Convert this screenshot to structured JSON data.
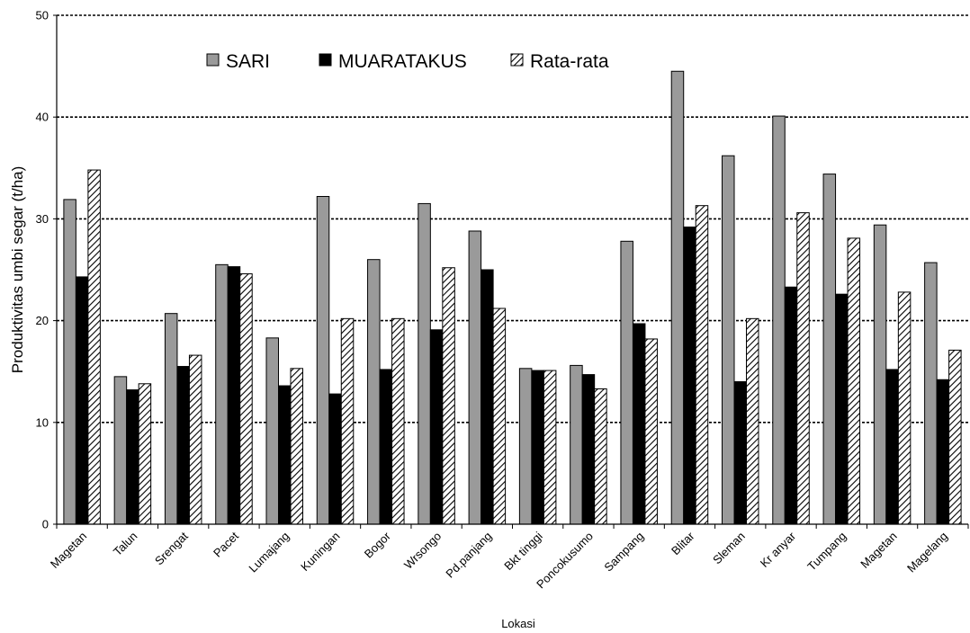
{
  "chart_data": {
    "type": "bar",
    "title": "",
    "xlabel": "Lokasi",
    "ylabel": "Produktivitas umbi segar (t/ha)",
    "ylim": [
      0,
      50
    ],
    "yticks": [
      "0",
      "10",
      "20",
      "30",
      "40",
      "50"
    ],
    "grid": "horizontal dotted",
    "legend_position": "top",
    "categories": [
      "Magetan",
      "Talun",
      "Srengat",
      "Pacet",
      "Lumajang",
      "Kuningan",
      "Bogor",
      "Wrsongo",
      "Pd.panjang",
      "Bkt tinggi",
      "Poncokusumo",
      "Sampang",
      "Blitar",
      "Sleman",
      "Kr anyar",
      "Tumpang",
      "Magetan",
      "Magelang"
    ],
    "series": [
      {
        "name": "SARI",
        "style": "gray",
        "values": [
          31.9,
          14.5,
          20.7,
          25.5,
          18.3,
          32.2,
          26.0,
          31.5,
          28.8,
          15.3,
          15.6,
          27.8,
          44.5,
          36.2,
          40.1,
          34.4,
          29.4,
          25.7
        ]
      },
      {
        "name": "MUARATAKUS",
        "style": "black",
        "values": [
          24.3,
          13.2,
          15.5,
          25.3,
          13.6,
          12.8,
          15.2,
          19.1,
          25.0,
          15.1,
          14.7,
          19.7,
          29.2,
          14.0,
          23.3,
          22.6,
          15.2,
          14.2
        ]
      },
      {
        "name": "Rata-rata",
        "style": "hatched",
        "values": [
          34.8,
          13.8,
          16.6,
          24.6,
          15.3,
          20.2,
          20.2,
          25.2,
          21.2,
          15.1,
          13.3,
          18.2,
          31.3,
          20.2,
          30.6,
          28.1,
          22.8,
          17.1
        ]
      }
    ],
    "colors": {
      "SARI": "#9a9a9a",
      "MUARATAKUS": "#000000",
      "Rata-rata": "hatch"
    }
  }
}
